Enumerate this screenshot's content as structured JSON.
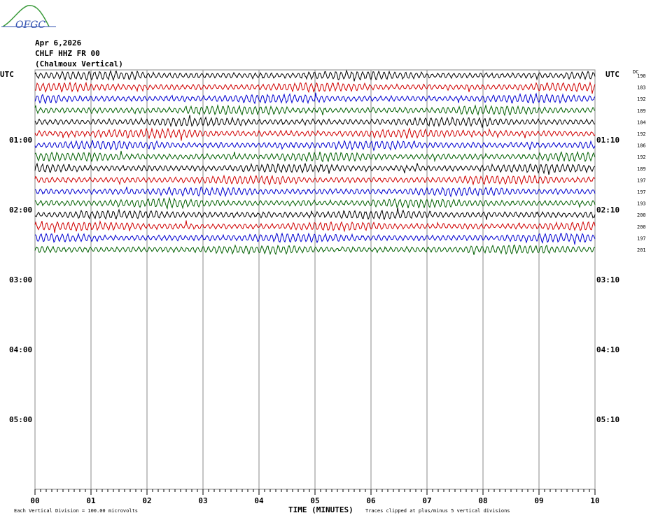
{
  "header": {
    "logo_text": "OFGC",
    "date": "Apr 6,2026",
    "station": "CHLF HHZ FR 00",
    "location": "(Chalmoux Vertical)"
  },
  "chart_data": {
    "type": "line",
    "left_axis_label": "UTC",
    "right_axis_label": "UTC",
    "dc_label": "DC",
    "x_axis_title": "TIME (MINUTES)",
    "x_ticks": [
      "00",
      "01",
      "02",
      "03",
      "04",
      "05",
      "06",
      "07",
      "08",
      "09",
      "10"
    ],
    "x_range": [
      0,
      10
    ],
    "left_time_labels": [
      "01:00",
      "02:00",
      "03:00",
      "04:00",
      "05:00"
    ],
    "right_time_labels": [
      "01:10",
      "02:10",
      "03:10",
      "04:10",
      "05:10"
    ],
    "trace_colors": [
      "#000000",
      "#d00000",
      "#0000d0",
      "#006000"
    ],
    "trace_count": 16,
    "dc_offsets": [
      "190",
      "183",
      "192",
      "189",
      "184",
      "192",
      "186",
      "192",
      "189",
      "197",
      "197",
      "193",
      "200",
      "200",
      "197",
      "201"
    ],
    "footer_left": "Each Vertical Division = 100.00 microvolts",
    "footer_right": "Traces clipped at plus/minus 5 vertical divisions"
  }
}
